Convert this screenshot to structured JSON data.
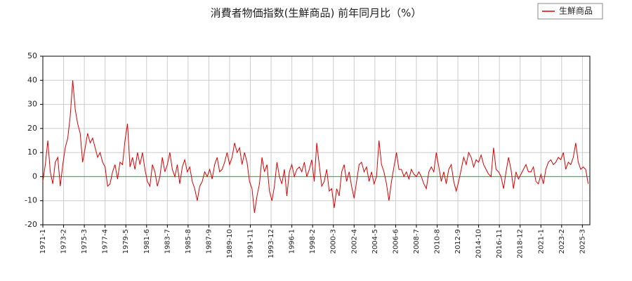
{
  "chart_data": {
    "type": "line",
    "title": "消費者物価指数(生鮮商品) 前年同月比（%）",
    "x": [
      "1971-1",
      "1971-4",
      "1971-7",
      "1971-10",
      "1972-1",
      "1972-4",
      "1972-7",
      "1972-10",
      "1973-1",
      "1973-4",
      "1973-7",
      "1973-10",
      "1974-1",
      "1974-4",
      "1974-7",
      "1974-10",
      "1975-1",
      "1975-4",
      "1975-7",
      "1975-10",
      "1976-1",
      "1976-4",
      "1976-7",
      "1976-10",
      "1977-1",
      "1977-4",
      "1977-7",
      "1977-10",
      "1978-1",
      "1978-4",
      "1978-7",
      "1978-10",
      "1979-1",
      "1979-4",
      "1979-7",
      "1979-10",
      "1980-1",
      "1980-4",
      "1980-7",
      "1980-10",
      "1981-1",
      "1981-4",
      "1981-7",
      "1981-10",
      "1982-1",
      "1982-4",
      "1982-7",
      "1982-10",
      "1983-1",
      "1983-4",
      "1983-7",
      "1983-10",
      "1984-1",
      "1984-4",
      "1984-7",
      "1984-10",
      "1985-1",
      "1985-4",
      "1985-7",
      "1985-10",
      "1986-1",
      "1986-4",
      "1986-7",
      "1986-10",
      "1987-1",
      "1987-4",
      "1987-7",
      "1987-10",
      "1988-1",
      "1988-4",
      "1988-7",
      "1988-10",
      "1989-1",
      "1989-4",
      "1989-7",
      "1989-10",
      "1990-1",
      "1990-4",
      "1990-7",
      "1990-10",
      "1991-1",
      "1991-4",
      "1991-7",
      "1991-10",
      "1992-1",
      "1992-4",
      "1992-7",
      "1992-10",
      "1993-1",
      "1993-4",
      "1993-7",
      "1993-10",
      "1994-1",
      "1994-4",
      "1994-7",
      "1994-10",
      "1995-1",
      "1995-4",
      "1995-7",
      "1995-10",
      "1996-1",
      "1996-4",
      "1996-7",
      "1996-10",
      "1997-1",
      "1997-4",
      "1997-7",
      "1997-10",
      "1998-1",
      "1998-4",
      "1998-7",
      "1998-10",
      "1999-1",
      "1999-4",
      "1999-7",
      "1999-10",
      "2000-1",
      "2000-4",
      "2000-7",
      "2000-10",
      "2001-1",
      "2001-4",
      "2001-7",
      "2001-10",
      "2002-1",
      "2002-4",
      "2002-7",
      "2002-10",
      "2003-1",
      "2003-4",
      "2003-7",
      "2003-10",
      "2004-1",
      "2004-4",
      "2004-7",
      "2004-10",
      "2005-1",
      "2005-4",
      "2005-7",
      "2005-10",
      "2006-1",
      "2006-4",
      "2006-7",
      "2006-10",
      "2007-1",
      "2007-4",
      "2007-7",
      "2007-10",
      "2008-1",
      "2008-4",
      "2008-7",
      "2008-10",
      "2009-1",
      "2009-4",
      "2009-7",
      "2009-10",
      "2010-1",
      "2010-4",
      "2010-7",
      "2010-10",
      "2011-1",
      "2011-4",
      "2011-7",
      "2011-10",
      "2012-1",
      "2012-4",
      "2012-7",
      "2012-10",
      "2013-1",
      "2013-4",
      "2013-7",
      "2013-10",
      "2014-1",
      "2014-4",
      "2014-7",
      "2014-10",
      "2015-1",
      "2015-4",
      "2015-7",
      "2015-10",
      "2016-1",
      "2016-4",
      "2016-7",
      "2016-10",
      "2017-1",
      "2017-4",
      "2017-7",
      "2017-10",
      "2018-1",
      "2018-4",
      "2018-7",
      "2018-10",
      "2019-1",
      "2019-4",
      "2019-7",
      "2019-10",
      "2020-1",
      "2020-4",
      "2020-7",
      "2020-10",
      "2021-1",
      "2021-4",
      "2021-7",
      "2021-10",
      "2022-1",
      "2022-4",
      "2022-7",
      "2022-10",
      "2023-1",
      "2023-4",
      "2023-7",
      "2023-10",
      "2024-1",
      "2024-4",
      "2024-7",
      "2024-10",
      "2025-1",
      "2025-4",
      "2025-7",
      "2025-10"
    ],
    "series": [
      {
        "name": "生鮮商品",
        "color": "#dd0000",
        "values": [
          -2,
          5,
          15,
          2,
          -3,
          6,
          8,
          -4,
          5,
          12,
          16,
          25,
          40,
          28,
          22,
          18,
          6,
          12,
          18,
          14,
          16,
          12,
          8,
          10,
          6,
          4,
          -4,
          -3,
          2,
          5,
          -1,
          6,
          5,
          15,
          22,
          4,
          8,
          3,
          10,
          5,
          10,
          3,
          -2,
          -4,
          5,
          2,
          -4,
          0,
          8,
          2,
          5,
          10,
          3,
          0,
          5,
          -3,
          4,
          7,
          2,
          4,
          -2,
          -5,
          -10,
          -4,
          -2,
          2,
          0,
          3,
          -1,
          5,
          8,
          2,
          3,
          6,
          10,
          5,
          8,
          14,
          10,
          12,
          5,
          10,
          6,
          -2,
          -5,
          -15,
          -8,
          -3,
          8,
          2,
          5,
          -6,
          -10,
          -4,
          6,
          0,
          -3,
          3,
          -8,
          2,
          5,
          0,
          3,
          4,
          2,
          6,
          0,
          3,
          7,
          -2,
          14,
          5,
          -4,
          -2,
          3,
          -6,
          -5,
          -13,
          -5,
          -8,
          2,
          5,
          -2,
          2,
          -4,
          -9,
          -2,
          5,
          6,
          2,
          4,
          -2,
          2,
          -3,
          0,
          15,
          5,
          2,
          -3,
          -10,
          -2,
          4,
          10,
          3,
          3,
          0,
          2,
          -1,
          3,
          1,
          0,
          2,
          0,
          -3,
          -5,
          2,
          4,
          2,
          10,
          4,
          -2,
          2,
          -3,
          3,
          5,
          -2,
          -6,
          -2,
          3,
          8,
          5,
          10,
          8,
          4,
          7,
          6,
          9,
          5,
          3,
          1,
          0,
          12,
          3,
          2,
          0,
          -5,
          2,
          8,
          3,
          -5,
          2,
          -1,
          1,
          3,
          5,
          2,
          2,
          4,
          -2,
          -3,
          1,
          -3,
          3,
          6,
          7,
          5,
          6,
          8,
          7,
          10,
          3,
          6,
          5,
          8,
          14,
          6,
          3,
          4,
          3,
          -3
        ]
      }
    ],
    "xlim": [
      "1971-1",
      "2025-12"
    ],
    "xticks": [
      "1971-1",
      "1973-2",
      "1975-3",
      "1977-4",
      "1979-5",
      "1981-6",
      "1983-7",
      "1985-8",
      "1987-9",
      "1989-10",
      "1991-11",
      "1993-12",
      "1996-1",
      "1998-2",
      "2000-3",
      "2002-4",
      "2004-5",
      "2006-6",
      "2008-7",
      "2010-8",
      "2012-9",
      "2014-10",
      "2016-11",
      "2018-12",
      "2021-1",
      "2023-2",
      "2025-3"
    ],
    "ylim": [
      -20,
      50
    ],
    "yticks": [
      -20,
      -10,
      0,
      10,
      20,
      30,
      40,
      50
    ],
    "grid": true,
    "zero_line_color": "#00cc00",
    "legend": "top-right"
  }
}
